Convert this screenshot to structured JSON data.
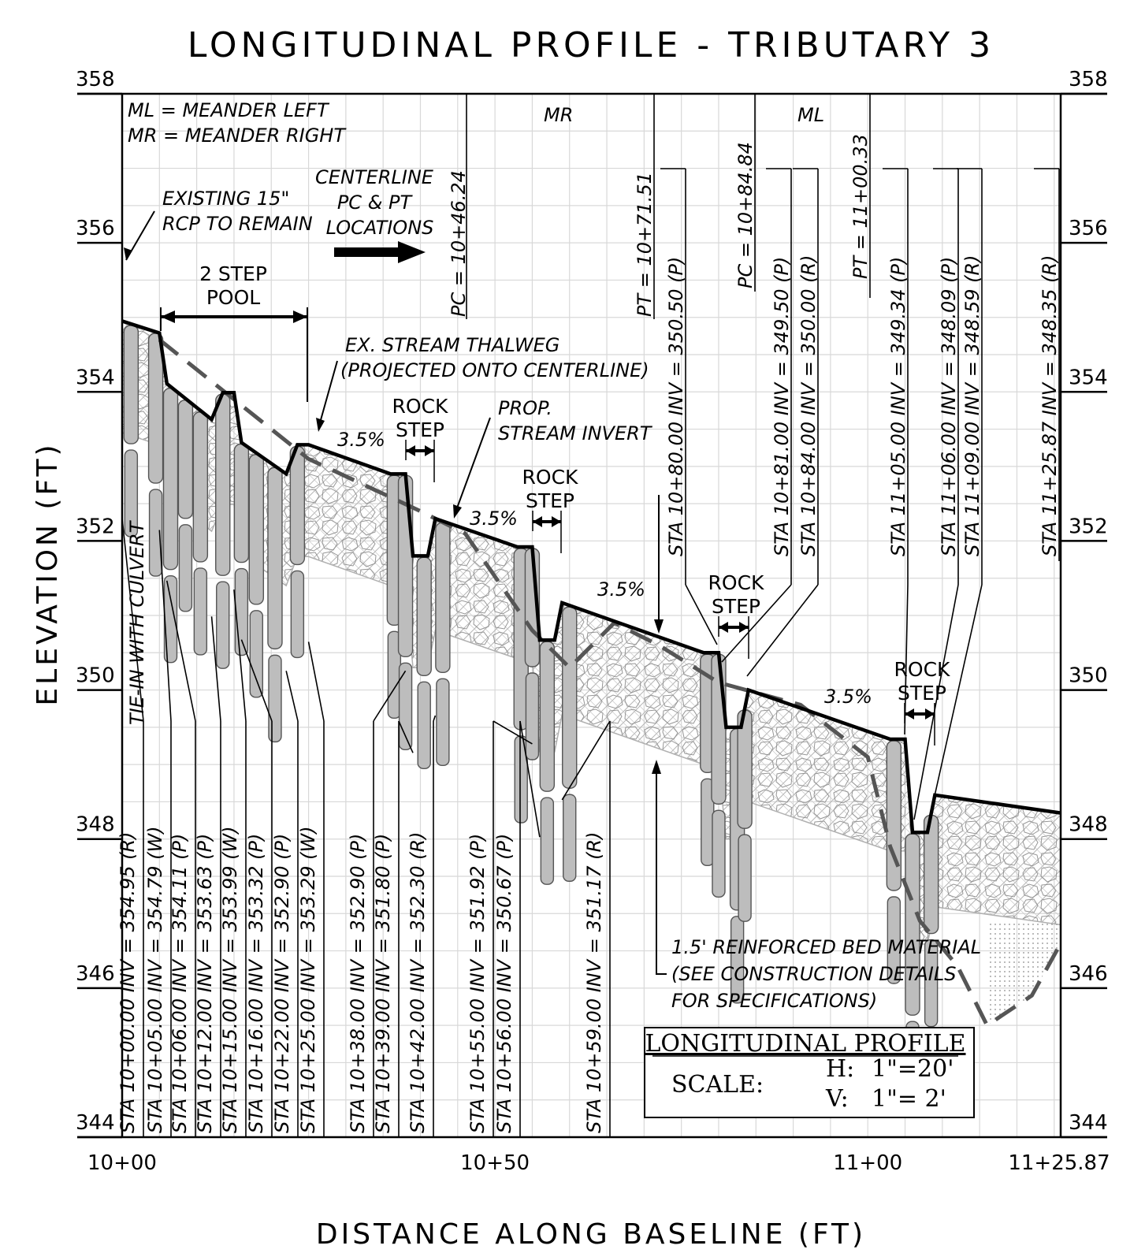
{
  "title": "LONGITUDINAL PROFILE - TRIBUTARY 3",
  "y_axis": {
    "label": "ELEVATION (FT)",
    "min": 344,
    "max": 358,
    "ticks": [
      "344",
      "346",
      "348",
      "350",
      "352",
      "354",
      "356",
      "358"
    ]
  },
  "x_axis": {
    "label": "DISTANCE ALONG BASELINE (FT)",
    "min": 0,
    "max": 125.87,
    "ticks": [
      {
        "v": 0,
        "label": "10+00"
      },
      {
        "v": 50,
        "label": "10+50"
      },
      {
        "v": 100,
        "label": "11+00"
      },
      {
        "v": 125.87,
        "label": "11+25.87"
      }
    ]
  },
  "legend": {
    "ml": "ML = MEANDER LEFT",
    "mr": "MR = MEANDER RIGHT"
  },
  "annotations": {
    "existing_rcp": [
      "EXISTING 15\"",
      "RCP TO REMAIN"
    ],
    "centerline": [
      "CENTERLINE",
      "PC & PT",
      "LOCATIONS"
    ],
    "two_step_pool": [
      "2 STEP",
      "POOL"
    ],
    "thalweg": [
      "EX. STREAM THALWEG",
      "(PROJECTED ONTO CENTERLINE)"
    ],
    "rock_step": [
      "ROCK",
      "STEP"
    ],
    "prop_invert": [
      "PROP.",
      "STREAM INVERT"
    ],
    "tie_in": "TIE-IN WITH CULVERT",
    "bed_material": [
      "1.5' REINFORCED BED MATERIAL",
      "(SEE CONSTRUCTION DETAILS",
      "FOR SPECIFICATIONS)"
    ],
    "slope": "3.5%",
    "mr": "MR",
    "ml": "ML"
  },
  "curve_points": [
    "PC = 10+46.24",
    "PT = 10+71.51",
    "PC = 10+84.84",
    "PT = 11+00.33"
  ],
  "station_labels_bottom": [
    "STA 10+00.00 INV = 354.95 (R)",
    "STA 10+05.00 INV = 354.79 (W)",
    "STA 10+06.00 INV = 354.11 (P)",
    "STA 10+12.00 INV = 353.63 (P)",
    "STA 10+15.00 INV = 353.99 (W)",
    "STA 10+16.00 INV = 353.32 (P)",
    "STA 10+22.00 INV = 352.90 (P)",
    "STA 10+25.00 INV = 353.29 (W)",
    "STA 10+38.00 INV = 352.90 (P)",
    "STA 10+39.00 INV = 351.80 (P)",
    "STA 10+42.00 INV = 352.30 (R)",
    "STA 10+55.00 INV = 351.92 (P)",
    "STA 10+56.00 INV = 350.67 (P)",
    "STA 10+59.00 INV = 351.17 (R)"
  ],
  "station_labels_top": [
    "STA 10+80.00 INV = 350.50 (P)",
    "STA 10+81.00 INV = 349.50 (P)",
    "STA 10+84.00 INV = 350.00 (R)",
    "STA 11+05.00 INV = 349.34 (P)",
    "STA 11+06.00 INV = 348.09 (P)",
    "STA 11+09.00 INV = 348.59 (R)",
    "STA 11+25.87 INV = 348.35 (R)"
  ],
  "scale_box": {
    "title": "LONGITUDINAL PROFILE",
    "scale_label": "SCALE:",
    "h_label": "H:",
    "h_value": "1\"=20'",
    "v_label": "V:",
    "v_value": "1\"= 2'"
  },
  "chart_data": {
    "type": "line",
    "xlabel": "DISTANCE ALONG BASELINE (FT)",
    "ylabel": "ELEVATION (FT)",
    "xlim": [
      0,
      125.87
    ],
    "ylim": [
      344,
      358
    ],
    "series": [
      {
        "name": "PROP. STREAM INVERT",
        "x": [
          0,
          5,
          6,
          12,
          13.5,
          15,
          16,
          22,
          23.5,
          25,
          36,
          38,
          39,
          41,
          42,
          53,
          55,
          56,
          58,
          59,
          78,
          80,
          81,
          83,
          84,
          103,
          105,
          106,
          108,
          109,
          125.87
        ],
        "y": [
          354.95,
          354.79,
          354.11,
          353.63,
          353.99,
          353.99,
          353.32,
          352.9,
          353.29,
          353.29,
          352.9,
          352.9,
          351.8,
          351.8,
          352.3,
          351.92,
          351.92,
          350.67,
          350.67,
          351.17,
          350.5,
          350.5,
          349.5,
          349.5,
          350.0,
          349.34,
          349.34,
          348.09,
          348.09,
          348.59,
          348.35
        ]
      },
      {
        "name": "EX. STREAM THALWEG",
        "x": [
          5,
          25,
          40,
          46,
          55,
          60,
          66,
          72,
          80,
          91,
          100,
          103,
          105,
          107,
          112,
          116,
          122,
          125.87
        ],
        "y": [
          354.7,
          353.1,
          352.4,
          352.1,
          350.8,
          350.3,
          350.9,
          350.6,
          350.1,
          349.8,
          349.1,
          347.9,
          347.4,
          346.9,
          346.3,
          345.5,
          345.9,
          346.6
        ]
      }
    ]
  }
}
